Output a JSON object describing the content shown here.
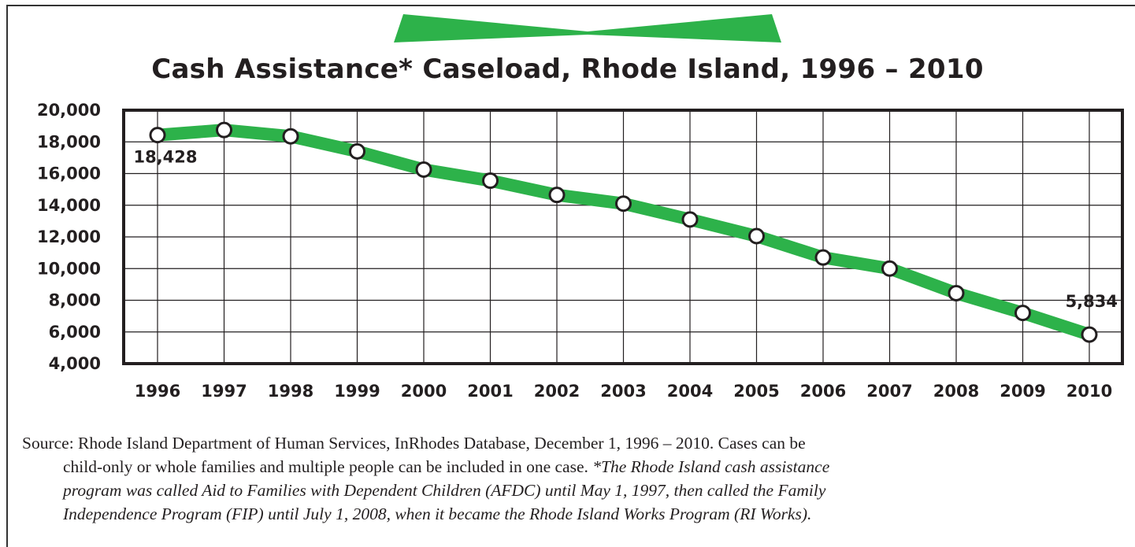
{
  "title": "Cash Assistance* Caseload, Rhode Island, 1996 – 2010",
  "colors": {
    "line": "#2db24a",
    "banner": "#2db24a",
    "text": "#231f20",
    "grid": "#231f20"
  },
  "chart_data": {
    "type": "line",
    "title": "Cash Assistance* Caseload, Rhode Island, 1996 – 2010",
    "xlabel": "",
    "ylabel": "",
    "categories": [
      "1996",
      "1997",
      "1998",
      "1999",
      "2000",
      "2001",
      "2002",
      "2003",
      "2004",
      "2005",
      "2006",
      "2007",
      "2008",
      "2009",
      "2010"
    ],
    "values": [
      18428,
      18750,
      18350,
      17400,
      16250,
      15550,
      14650,
      14100,
      13100,
      12050,
      10700,
      10000,
      8450,
      7200,
      5834
    ],
    "ylim": [
      4000,
      20000
    ],
    "yticks": [
      "20,000",
      "18,000",
      "16,000",
      "14,000",
      "12,000",
      "10,000",
      "8,000",
      "6,000",
      "4,000"
    ],
    "grid": true,
    "data_labels": [
      {
        "index": 0,
        "text": "18,428"
      },
      {
        "index": 14,
        "text": "5,834"
      }
    ]
  },
  "source": {
    "line1": "Source: Rhode Island Department of Human Services, InRhodes Database, December 1, 1996 – 2010. Cases can be",
    "line2_plain": "child-only or whole families and multiple people can be included in one case. ",
    "line2_italic": "*The Rhode Island cash assistance",
    "line3": "program was called Aid to Families with Dependent Children (AFDC) until May 1, 1997, then called the Family",
    "line4": "Independence Program (FIP) until July 1, 2008, when it became the Rhode Island Works Program (RI Works)."
  }
}
